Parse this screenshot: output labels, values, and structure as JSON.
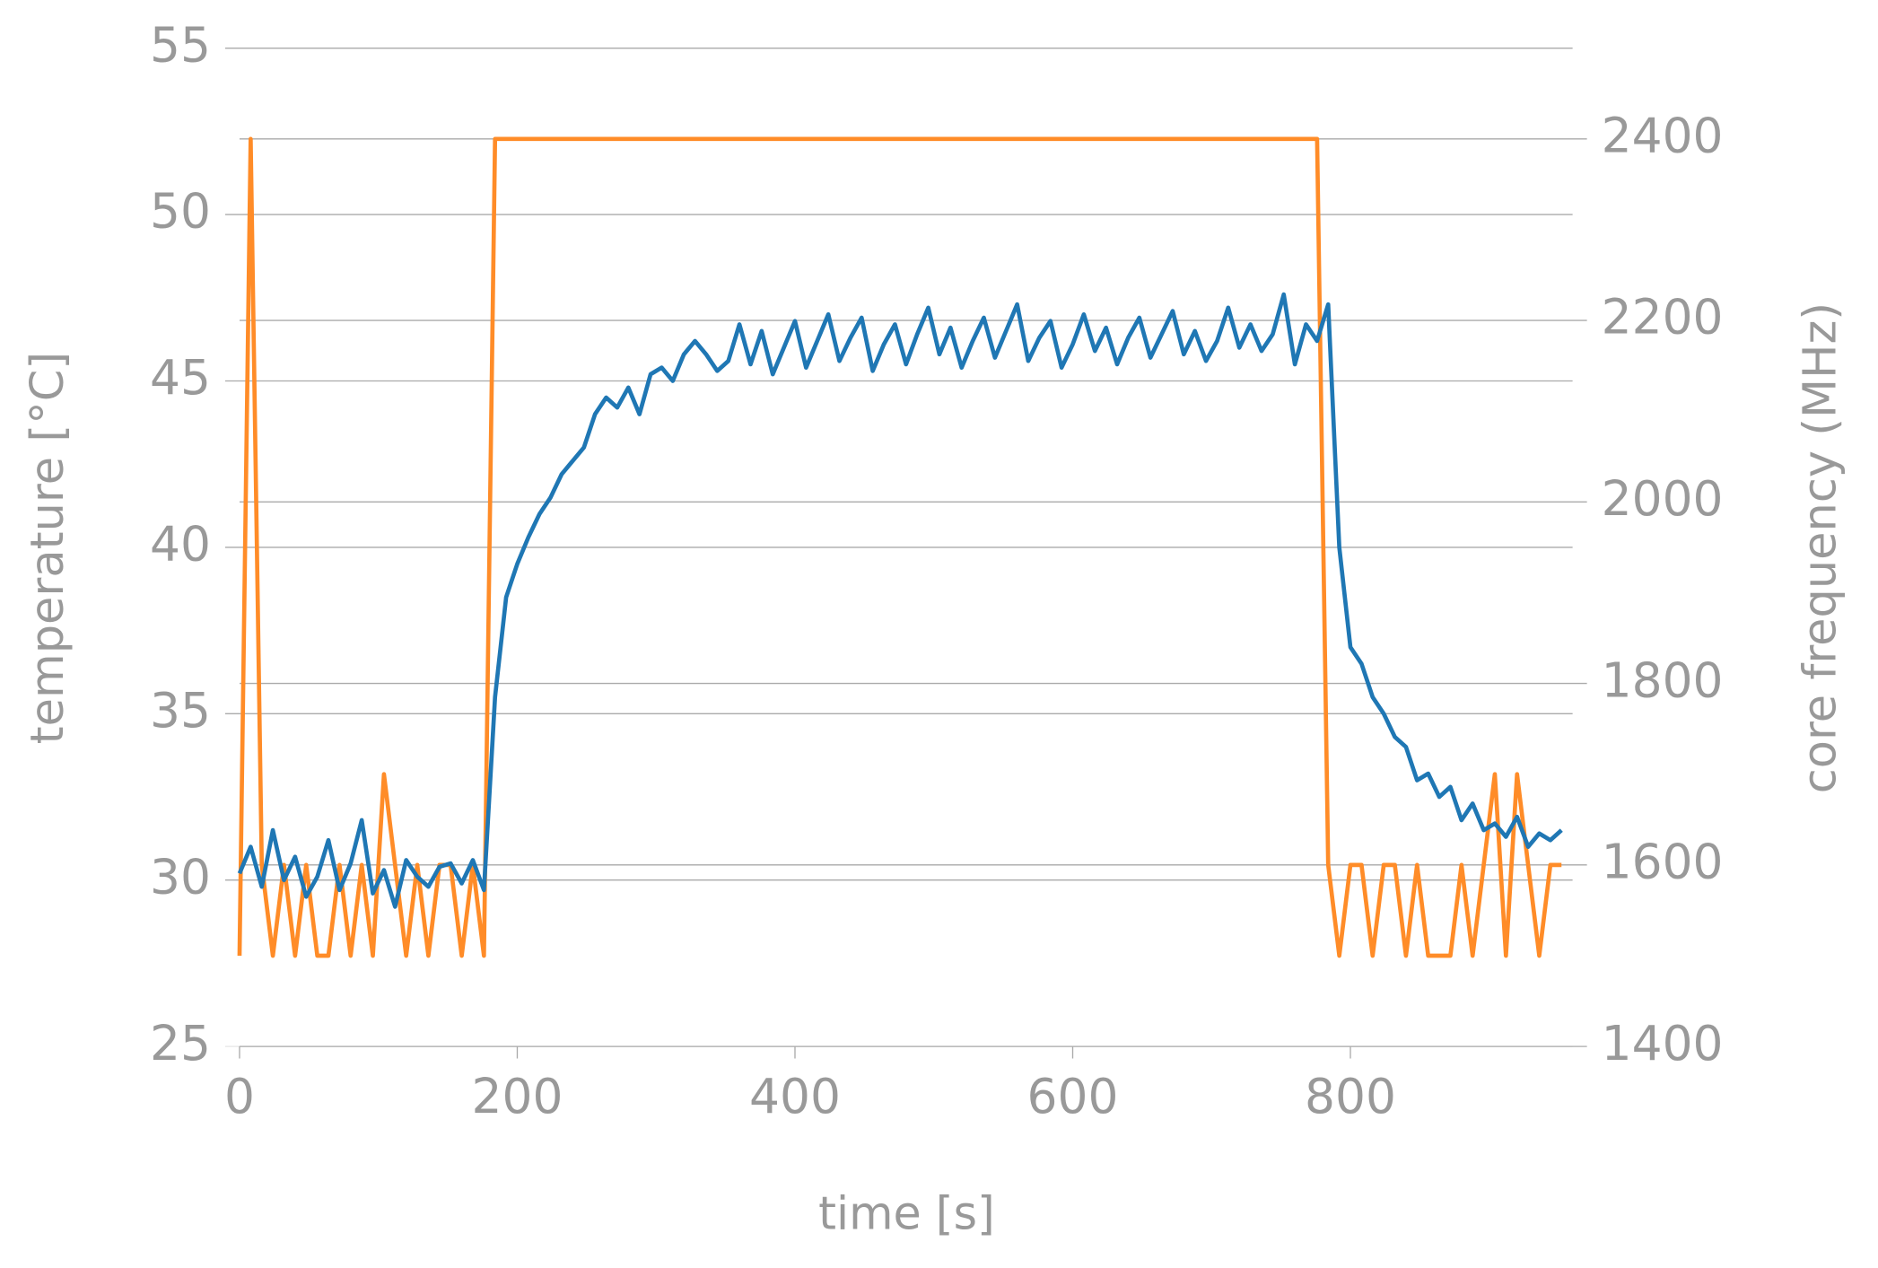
{
  "chart_data": {
    "type": "line",
    "xlabel": "time [s]",
    "ylabel": "temperature [°C]",
    "y2label": "core frequency (MHz)",
    "xlim": [
      0,
      960
    ],
    "xticks": [
      0,
      200,
      400,
      600,
      800
    ],
    "ylim": [
      25,
      55
    ],
    "yticks": [
      25,
      30,
      35,
      40,
      45,
      50,
      55
    ],
    "y2lim": [
      1400,
      2500
    ],
    "y2ticks": [
      1400,
      1600,
      1800,
      2000,
      2200,
      2400
    ],
    "grid": true,
    "x": [
      0,
      8,
      16,
      24,
      32,
      40,
      48,
      56,
      64,
      72,
      80,
      88,
      96,
      104,
      112,
      120,
      128,
      136,
      144,
      152,
      160,
      168,
      176,
      184,
      192,
      200,
      208,
      216,
      224,
      232,
      240,
      248,
      256,
      264,
      272,
      280,
      288,
      296,
      304,
      312,
      320,
      328,
      336,
      344,
      352,
      360,
      368,
      376,
      384,
      392,
      400,
      408,
      416,
      424,
      432,
      440,
      448,
      456,
      464,
      472,
      480,
      488,
      496,
      504,
      512,
      520,
      528,
      536,
      544,
      552,
      560,
      568,
      576,
      584,
      592,
      600,
      608,
      616,
      624,
      632,
      640,
      648,
      656,
      664,
      672,
      680,
      688,
      696,
      704,
      712,
      720,
      728,
      736,
      744,
      752,
      760,
      768,
      776,
      784,
      792,
      800,
      808,
      816,
      824,
      832,
      840,
      848,
      856,
      864,
      872,
      880,
      888,
      896,
      904,
      912,
      920,
      928,
      936,
      944,
      952
    ],
    "series": [
      {
        "name": "temperature",
        "color": "#1f77b4",
        "axis": "y",
        "values": [
          30.2,
          31,
          29.8,
          31.5,
          30,
          30.7,
          29.5,
          30.1,
          31.2,
          29.7,
          30.5,
          31.8,
          29.6,
          30.3,
          29.2,
          30.6,
          30.1,
          29.8,
          30.4,
          30.5,
          29.9,
          30.6,
          29.7,
          35.5,
          38.5,
          39.5,
          40.3,
          41,
          41.5,
          42.2,
          42.6,
          43,
          44,
          44.5,
          44.2,
          44.8,
          44,
          45.2,
          45.4,
          45,
          45.8,
          46.2,
          45.8,
          45.3,
          45.6,
          46.7,
          45.5,
          46.5,
          45.2,
          46,
          46.8,
          45.4,
          46.2,
          47,
          45.6,
          46.3,
          46.9,
          45.3,
          46.1,
          46.7,
          45.5,
          46.4,
          47.2,
          45.8,
          46.6,
          45.4,
          46.2,
          46.9,
          45.7,
          46.5,
          47.3,
          45.6,
          46.3,
          46.8,
          45.4,
          46.1,
          47,
          45.9,
          46.6,
          45.5,
          46.3,
          46.9,
          45.7,
          46.4,
          47.1,
          45.8,
          46.5,
          45.6,
          46.2,
          47.2,
          46,
          46.7,
          45.9,
          46.4,
          47.6,
          45.5,
          46.7,
          46.2,
          47.3,
          40,
          37,
          36.5,
          35.5,
          35,
          34.3,
          34,
          33,
          33.2,
          32.5,
          32.8,
          31.8,
          32.3,
          31.5,
          31.7,
          31.3,
          31.9,
          31,
          31.4,
          31.2,
          31.5
        ]
      },
      {
        "name": "core frequency",
        "color": "#ff8c28",
        "axis": "y2",
        "values": [
          1500,
          2400,
          1600,
          1500,
          1600,
          1500,
          1600,
          1500,
          1500,
          1600,
          1500,
          1600,
          1500,
          1700,
          1600,
          1500,
          1600,
          1500,
          1600,
          1600,
          1500,
          1600,
          1500,
          2400,
          2400,
          2400,
          2400,
          2400,
          2400,
          2400,
          2400,
          2400,
          2400,
          2400,
          2400,
          2400,
          2400,
          2400,
          2400,
          2400,
          2400,
          2400,
          2400,
          2400,
          2400,
          2400,
          2400,
          2400,
          2400,
          2400,
          2400,
          2400,
          2400,
          2400,
          2400,
          2400,
          2400,
          2400,
          2400,
          2400,
          2400,
          2400,
          2400,
          2400,
          2400,
          2400,
          2400,
          2400,
          2400,
          2400,
          2400,
          2400,
          2400,
          2400,
          2400,
          2400,
          2400,
          2400,
          2400,
          2400,
          2400,
          2400,
          2400,
          2400,
          2400,
          2400,
          2400,
          2400,
          2400,
          2400,
          2400,
          2400,
          2400,
          2400,
          2400,
          2400,
          2400,
          2400,
          1600,
          1500,
          1600,
          1600,
          1500,
          1600,
          1600,
          1500,
          1600,
          1500,
          1500,
          1500,
          1600,
          1500,
          1600,
          1700,
          1500,
          1700,
          1600,
          1500,
          1600,
          1600
        ]
      }
    ]
  }
}
